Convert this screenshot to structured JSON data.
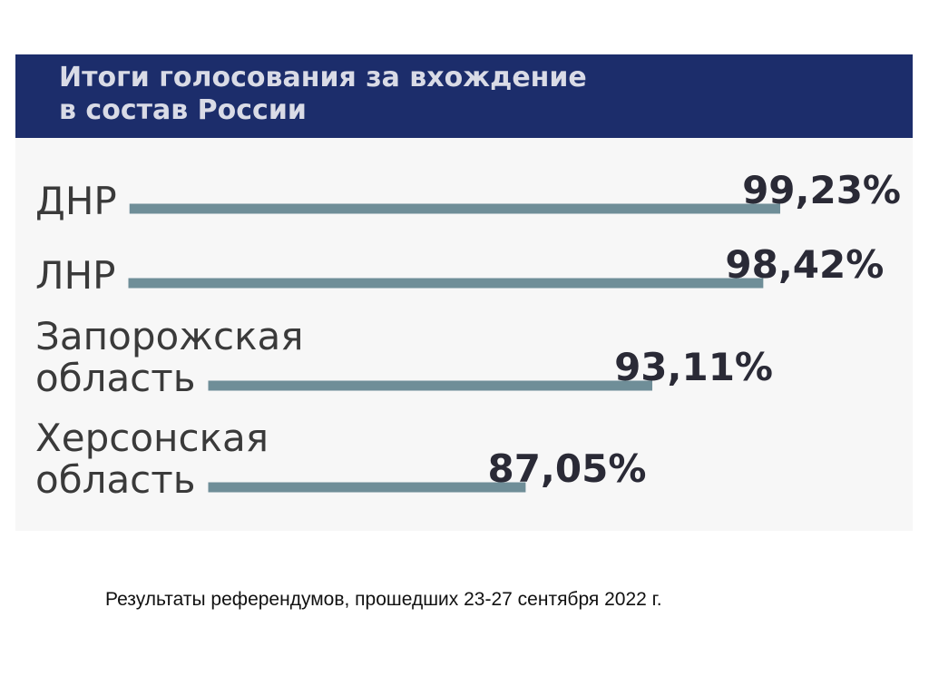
{
  "chart_data": {
    "type": "bar",
    "title": "Итоги голосования за вхождение\nв состав России",
    "categories": [
      "ДНР",
      "ЛНР",
      "Запорожская область",
      "Херсонская область"
    ],
    "category_lines": [
      [
        "ДНР"
      ],
      [
        "ЛНР"
      ],
      [
        "Запорожская",
        "область"
      ],
      [
        "Херсонская",
        "область"
      ]
    ],
    "values": [
      99.23,
      98.42,
      93.11,
      87.05
    ],
    "value_labels": [
      "99,23%",
      "98,42%",
      "93,11%",
      "87,05%"
    ],
    "unit": "%",
    "orientation": "horizontal",
    "grid": false,
    "legend": "none",
    "colors": {
      "header": "#1c2d6b",
      "bar": "#6f8e98",
      "panel": "#f7f7f7"
    }
  },
  "caption": "Результаты референдумов, прошедших 23-27 сентября 2022 г."
}
